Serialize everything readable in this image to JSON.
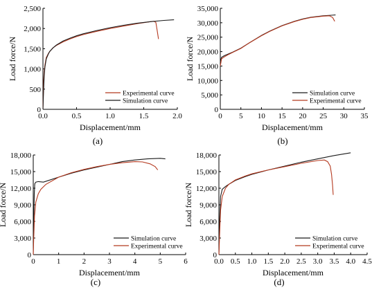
{
  "colors": {
    "simulation": "#1a1a1a",
    "experimental": "#b5391f"
  },
  "chart_data": [
    {
      "panel": "(a)",
      "type": "line",
      "xlabel": "Displacement/mm",
      "ylabel": "Load force/N",
      "xlim": [
        0,
        2.0
      ],
      "ylim": [
        0,
        2500
      ],
      "xticks": [
        0.0,
        0.5,
        1.0,
        1.5,
        2.0
      ],
      "xtick_labels": [
        "0.0",
        "0.5",
        "1.0",
        "1.5",
        "2.0"
      ],
      "yticks": [
        0,
        500,
        1000,
        1500,
        2000,
        2500
      ],
      "ytick_labels": [
        "0",
        "500",
        "1,000",
        "1,500",
        "2,000",
        "2,500"
      ],
      "legend_position": "bottom-right",
      "series": [
        {
          "name": "Experimental curve",
          "color_key": "experimental",
          "x": [
            0,
            0.01,
            0.02,
            0.03,
            0.05,
            0.08,
            0.1,
            0.15,
            0.2,
            0.3,
            0.4,
            0.5,
            0.6,
            0.8,
            1.0,
            1.2,
            1.4,
            1.6,
            1.65,
            1.68,
            1.7,
            1.72
          ],
          "y": [
            0,
            700,
            950,
            1100,
            1280,
            1380,
            1430,
            1520,
            1580,
            1670,
            1740,
            1800,
            1850,
            1930,
            2000,
            2060,
            2120,
            2170,
            2180,
            2150,
            1950,
            1740
          ]
        },
        {
          "name": "Simulation curve",
          "color_key": "simulation",
          "x": [
            0,
            0.01,
            0.02,
            0.03,
            0.05,
            0.08,
            0.1,
            0.15,
            0.2,
            0.3,
            0.4,
            0.5,
            0.6,
            0.8,
            1.0,
            1.2,
            1.4,
            1.6,
            1.8,
            1.95
          ],
          "y": [
            0,
            500,
            850,
            1050,
            1250,
            1370,
            1430,
            1520,
            1590,
            1690,
            1760,
            1820,
            1870,
            1950,
            2020,
            2080,
            2130,
            2170,
            2200,
            2215
          ]
        }
      ]
    },
    {
      "panel": "(b)",
      "type": "line",
      "xlabel": "Displacement/mm",
      "ylabel": "Load force/N",
      "xlim": [
        0,
        35
      ],
      "ylim": [
        0,
        35000
      ],
      "xticks": [
        0,
        5,
        10,
        15,
        20,
        25,
        30,
        35
      ],
      "xtick_labels": [
        "0",
        "5",
        "10",
        "15",
        "20",
        "25",
        "30",
        "35"
      ],
      "yticks": [
        0,
        5000,
        10000,
        15000,
        20000,
        25000,
        30000,
        35000
      ],
      "ytick_labels": [
        "0",
        "5,000",
        "10,000",
        "15,000",
        "20,000",
        "25,000",
        "30,000",
        "35,000"
      ],
      "legend_position": "bottom-right",
      "series": [
        {
          "name": "Simulation curve",
          "color_key": "simulation",
          "x": [
            0,
            0.3,
            1,
            2,
            3,
            5,
            7,
            10,
            12,
            15,
            18,
            20,
            22,
            25,
            27,
            28
          ],
          "y": [
            16500,
            18000,
            18600,
            19200,
            19800,
            21200,
            23000,
            25600,
            27100,
            29000,
            30500,
            31300,
            31900,
            32400,
            32600,
            32700
          ]
        },
        {
          "name": "Experimental curve",
          "color_key": "experimental",
          "x": [
            0,
            0.3,
            1,
            2,
            3,
            5,
            7,
            10,
            12,
            15,
            18,
            20,
            22,
            25,
            26.5,
            27.3,
            27.8
          ],
          "y": [
            15000,
            17500,
            18200,
            19000,
            19700,
            21100,
            23000,
            25500,
            27000,
            28900,
            30400,
            31200,
            31800,
            32300,
            32400,
            31800,
            30500
          ]
        }
      ]
    },
    {
      "panel": "(c)",
      "type": "line",
      "xlabel": "Displacement/mm",
      "ylabel": "Load force/N",
      "xlim": [
        0,
        6
      ],
      "ylim": [
        0,
        18000
      ],
      "xticks": [
        0,
        1,
        2,
        3,
        4,
        5,
        6
      ],
      "xtick_labels": [
        "0",
        "1",
        "2",
        "3",
        "4",
        "5",
        "6"
      ],
      "yticks": [
        0,
        3000,
        6000,
        9000,
        12000,
        15000,
        18000
      ],
      "ytick_labels": [
        "0",
        "3,000",
        "6,000",
        "9,000",
        "12,000",
        "15,000",
        "18,000"
      ],
      "legend_position": "bottom-right",
      "series": [
        {
          "name": "Simulation curve",
          "color_key": "simulation",
          "x": [
            0,
            0.02,
            0.04,
            0.06,
            0.1,
            0.2,
            0.4,
            0.6,
            1.0,
            1.5,
            2.0,
            2.5,
            3.0,
            3.5,
            4.0,
            4.5,
            5.0,
            5.2
          ],
          "y": [
            0,
            6000,
            11000,
            12800,
            13100,
            13200,
            13100,
            13400,
            14000,
            14700,
            15300,
            15800,
            16300,
            16800,
            17100,
            17300,
            17400,
            17300
          ]
        },
        {
          "name": "Experimental curve",
          "color_key": "experimental",
          "x": [
            0,
            0.02,
            0.05,
            0.1,
            0.2,
            0.3,
            0.5,
            1.0,
            1.5,
            2.0,
            2.5,
            3.0,
            3.5,
            4.0,
            4.3,
            4.6,
            4.8,
            4.9
          ],
          "y": [
            0,
            3000,
            7000,
            9500,
            11000,
            11800,
            12700,
            14000,
            14800,
            15400,
            15900,
            16300,
            16600,
            16800,
            16750,
            16400,
            15900,
            15300
          ]
        }
      ]
    },
    {
      "panel": "(d)",
      "type": "line",
      "xlabel": "Displacement/mm",
      "ylabel": "Load force/N",
      "xlim": [
        0,
        4.5
      ],
      "ylim": [
        0,
        18000
      ],
      "xticks": [
        0.0,
        0.5,
        1.0,
        1.5,
        2.0,
        2.5,
        3.0,
        3.5,
        4.0,
        4.5
      ],
      "xtick_labels": [
        "0.0",
        "0.5",
        "1.0",
        "1.5",
        "2.0",
        "2.5",
        "3.0",
        "3.5",
        "4.0",
        "4.5"
      ],
      "yticks": [
        0,
        3000,
        6000,
        9000,
        12000,
        15000,
        18000
      ],
      "ytick_labels": [
        "0",
        "3,000",
        "6,000",
        "9,000",
        "12,000",
        "15,000",
        "18,000"
      ],
      "legend_position": "bottom-right",
      "series": [
        {
          "name": "Simulation curve",
          "color_key": "simulation",
          "x": [
            0,
            0.02,
            0.05,
            0.1,
            0.2,
            0.3,
            0.5,
            0.8,
            1.0,
            1.5,
            2.0,
            2.5,
            3.0,
            3.5,
            4.0
          ],
          "y": [
            0,
            6000,
            10500,
            11800,
            12300,
            12700,
            13400,
            14100,
            14500,
            15300,
            16000,
            16700,
            17300,
            17900,
            18400
          ]
        },
        {
          "name": "Experimental curve",
          "color_key": "experimental",
          "x": [
            0,
            0.02,
            0.05,
            0.1,
            0.2,
            0.3,
            0.5,
            0.8,
            1.0,
            1.5,
            2.0,
            2.5,
            3.0,
            3.2,
            3.3,
            3.38,
            3.42,
            3.45,
            3.47
          ],
          "y": [
            0,
            3500,
            8000,
            10500,
            12000,
            12700,
            13500,
            14200,
            14600,
            15300,
            15900,
            16500,
            17000,
            17100,
            16800,
            16000,
            14500,
            12500,
            10800
          ]
        }
      ]
    }
  ]
}
